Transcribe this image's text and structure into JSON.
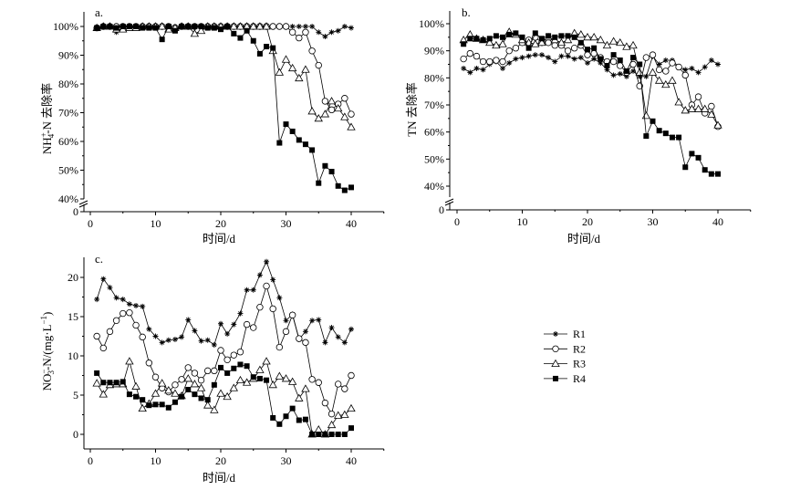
{
  "chart_data": [
    {
      "type": "line",
      "panel": "a.",
      "title": "",
      "xlabel": "时间/d",
      "ylabel_parts": [
        "NH",
        "+",
        "4",
        "-N 去除率"
      ],
      "xlim": [
        0,
        45
      ],
      "ylim": [
        40,
        100
      ],
      "axis_break": true,
      "x_ticks": [
        "0",
        "10",
        "20",
        "30",
        "40"
      ],
      "y_ticks": [
        "0",
        "40%",
        "50%",
        "60%",
        "70%",
        "80%",
        "90%",
        "100%"
      ],
      "x": [
        1,
        2,
        3,
        4,
        5,
        6,
        7,
        8,
        9,
        10,
        11,
        12,
        13,
        14,
        15,
        16,
        17,
        18,
        19,
        20,
        21,
        22,
        23,
        24,
        25,
        26,
        27,
        28,
        29,
        30,
        31,
        32,
        33,
        34,
        35,
        36,
        37,
        38,
        39,
        40
      ],
      "series": [
        {
          "name": "R1",
          "marker": "star",
          "values": [
            99.5,
            100,
            100,
            98,
            99.5,
            100,
            100,
            100,
            100,
            100,
            100,
            100,
            100,
            100,
            100,
            100,
            100,
            100,
            100,
            100,
            100,
            100,
            100,
            100,
            100,
            100,
            100,
            100,
            100,
            100,
            100,
            100,
            100,
            100,
            98,
            96.5,
            98,
            98.5,
            100,
            99.5
          ]
        },
        {
          "name": "R2",
          "marker": "circle",
          "values": [
            99.5,
            100,
            100,
            100,
            100,
            100,
            100,
            100,
            100,
            100,
            100,
            100,
            99.5,
            100,
            100,
            100,
            100,
            100,
            100,
            100,
            100,
            100,
            100,
            100,
            100,
            100,
            100,
            100,
            100,
            100,
            98,
            96,
            98,
            91.5,
            86.5,
            74,
            71,
            73,
            75,
            69.5
          ]
        },
        {
          "name": "R3",
          "marker": "triangle",
          "values": [
            99.5,
            100,
            100,
            99,
            99,
            99.5,
            99.5,
            100,
            100,
            100,
            100,
            99,
            99.5,
            100,
            100,
            97.5,
            98.5,
            100,
            100,
            100,
            100,
            100,
            100,
            100,
            100,
            100,
            100,
            91.5,
            84,
            88.5,
            85.5,
            82,
            85,
            70.5,
            68,
            69.5,
            74,
            71.5,
            68.5,
            65
          ]
        },
        {
          "name": "R4",
          "marker": "square",
          "values": [
            99.5,
            100,
            100,
            99.5,
            100,
            100,
            100,
            99.5,
            99.5,
            99.5,
            95.5,
            100,
            98.5,
            100,
            100,
            100,
            100,
            99.5,
            99.5,
            99,
            100,
            97.5,
            96,
            98.5,
            95,
            90.5,
            93,
            92.5,
            59.5,
            66,
            63.5,
            60.5,
            59,
            57,
            45.5,
            51.5,
            49.5,
            44.5,
            43,
            44
          ]
        }
      ]
    },
    {
      "type": "line",
      "panel": "b.",
      "title": "",
      "xlabel": "时间/d",
      "ylabel_parts": [
        "TN 去除率"
      ],
      "xlim": [
        0,
        45
      ],
      "ylim": [
        40,
        100
      ],
      "axis_break": true,
      "x_ticks": [
        "0",
        "10",
        "20",
        "30",
        "40"
      ],
      "y_ticks": [
        "0",
        "40%",
        "50%",
        "60%",
        "70%",
        "80%",
        "90%",
        "100%"
      ],
      "x": [
        1,
        2,
        3,
        4,
        5,
        6,
        7,
        8,
        9,
        10,
        11,
        12,
        13,
        14,
        15,
        16,
        17,
        18,
        19,
        20,
        21,
        22,
        23,
        24,
        25,
        26,
        27,
        28,
        29,
        30,
        31,
        32,
        33,
        34,
        35,
        36,
        37,
        38,
        39,
        40
      ],
      "series": [
        {
          "name": "R1",
          "marker": "star",
          "values": [
            83.5,
            82,
            83.5,
            83,
            85,
            86,
            83.5,
            85.5,
            87,
            87.5,
            88,
            88.5,
            88.5,
            87.5,
            86,
            88,
            88,
            87,
            87.5,
            85.5,
            87,
            85.5,
            83,
            81,
            81.5,
            80.5,
            82.5,
            80.5,
            80.5,
            88,
            85,
            86.5,
            86.5,
            84,
            83,
            83.5,
            82,
            84,
            86.5,
            85
          ]
        },
        {
          "name": "R2",
          "marker": "circle",
          "values": [
            87,
            89,
            88,
            86,
            86,
            86.5,
            86,
            90,
            91,
            93,
            94,
            95,
            93,
            93,
            92,
            92,
            90,
            91,
            92,
            88.5,
            89,
            87.5,
            86,
            86,
            84.5,
            82,
            85,
            77,
            87.5,
            88.5,
            83,
            82.5,
            85.5,
            84,
            81,
            70,
            73,
            67,
            69.5,
            62
          ]
        },
        {
          "name": "R3",
          "marker": "triangle",
          "values": [
            94,
            96,
            94.5,
            94,
            93,
            92,
            92.5,
            97,
            96,
            94,
            93,
            92.5,
            93,
            95,
            94,
            93,
            94,
            96.5,
            96,
            95,
            95,
            94,
            92,
            93.5,
            93,
            91.5,
            92,
            82,
            66,
            82,
            79,
            77.5,
            79,
            71,
            68,
            68.5,
            68.5,
            68.5,
            66.5,
            62.5
          ]
        },
        {
          "name": "R4",
          "marker": "square",
          "values": [
            92.5,
            94.5,
            94.5,
            94,
            94.5,
            95.5,
            95,
            96,
            96.5,
            95,
            91,
            96.5,
            94.5,
            95.5,
            95,
            95.5,
            95.5,
            95,
            93,
            90.5,
            91,
            87,
            84.5,
            88.5,
            86.5,
            82.5,
            87.5,
            85,
            58.5,
            64,
            60.5,
            59.5,
            58,
            58,
            47,
            52,
            50.5,
            46,
            44.5,
            44.5
          ]
        }
      ]
    },
    {
      "type": "line",
      "panel": "c.",
      "title": "",
      "xlabel": "时间/d",
      "ylabel_parts": [
        "NO",
        "−",
        "3",
        "-N/(mg·L",
        "−1",
        ")"
      ],
      "xlim": [
        0,
        45
      ],
      "ylim": [
        -2,
        22.5
      ],
      "x_ticks": [
        "0",
        "10",
        "20",
        "30",
        "40"
      ],
      "y_ticks": [
        "0",
        "5",
        "10",
        "15",
        "20"
      ],
      "x": [
        1,
        2,
        3,
        4,
        5,
        6,
        7,
        8,
        9,
        10,
        11,
        12,
        13,
        14,
        15,
        16,
        17,
        18,
        19,
        20,
        21,
        22,
        23,
        24,
        25,
        26,
        27,
        28,
        29,
        30,
        31,
        32,
        33,
        34,
        35,
        36,
        37,
        38,
        39,
        40
      ],
      "series": [
        {
          "name": "R1",
          "marker": "star",
          "values": [
            17.2,
            19.8,
            18.7,
            17.4,
            17.2,
            16.6,
            16.4,
            16.3,
            13.4,
            12.5,
            11.7,
            12,
            12.1,
            12.4,
            14.6,
            13.2,
            11.9,
            12,
            11.4,
            14.1,
            12.8,
            14,
            15.4,
            18.4,
            18.4,
            20.3,
            22,
            19.7,
            17.4,
            14.5,
            15.3,
            12.1,
            13.1,
            14.5,
            14.6,
            11.7,
            13.6,
            12.4,
            11.7,
            13.4
          ]
        },
        {
          "name": "R2",
          "marker": "circle",
          "values": [
            12.5,
            11,
            13.1,
            14.5,
            15.4,
            15.5,
            13.9,
            12.4,
            9.1,
            7.3,
            5.9,
            5.4,
            6.3,
            7,
            8.5,
            7.8,
            6.9,
            8.1,
            8.1,
            10.7,
            9.5,
            10.1,
            10.5,
            14,
            13.6,
            16.2,
            18.9,
            16,
            11.1,
            13.1,
            15.2,
            12.2,
            11.7,
            7,
            6.6,
            4,
            2.6,
            6.4,
            5.8,
            7.5
          ]
        },
        {
          "name": "R3",
          "marker": "triangle",
          "values": [
            6.5,
            5.1,
            6.3,
            6.4,
            6.4,
            9.3,
            6.1,
            3.3,
            3.9,
            5.2,
            6.5,
            5.6,
            5.2,
            4.9,
            7.1,
            6.4,
            5.9,
            3.7,
            3.1,
            5.2,
            4.8,
            5.9,
            6.9,
            6.6,
            7.1,
            8.2,
            9.3,
            6.3,
            7.4,
            7.1,
            6.7,
            4.6,
            5.8,
            0,
            0.6,
            0,
            1.2,
            2.4,
            2.5,
            3.3
          ]
        },
        {
          "name": "R4",
          "marker": "square",
          "values": [
            7.8,
            6.6,
            6.6,
            6.6,
            6.7,
            5.1,
            4.8,
            4.4,
            3.7,
            3.8,
            3.8,
            3.4,
            4.1,
            4.8,
            5.7,
            5.1,
            4.6,
            4.4,
            6.3,
            8.5,
            7.8,
            8.4,
            8.9,
            8.7,
            7.3,
            7.1,
            6.9,
            2.1,
            1.3,
            2.3,
            3.3,
            1.8,
            1.9,
            0,
            0,
            0,
            0,
            0,
            0,
            0.8
          ]
        }
      ]
    }
  ],
  "legend": {
    "placement": "right of panel c",
    "entries": [
      "R1",
      "R2",
      "R3",
      "R4"
    ]
  }
}
